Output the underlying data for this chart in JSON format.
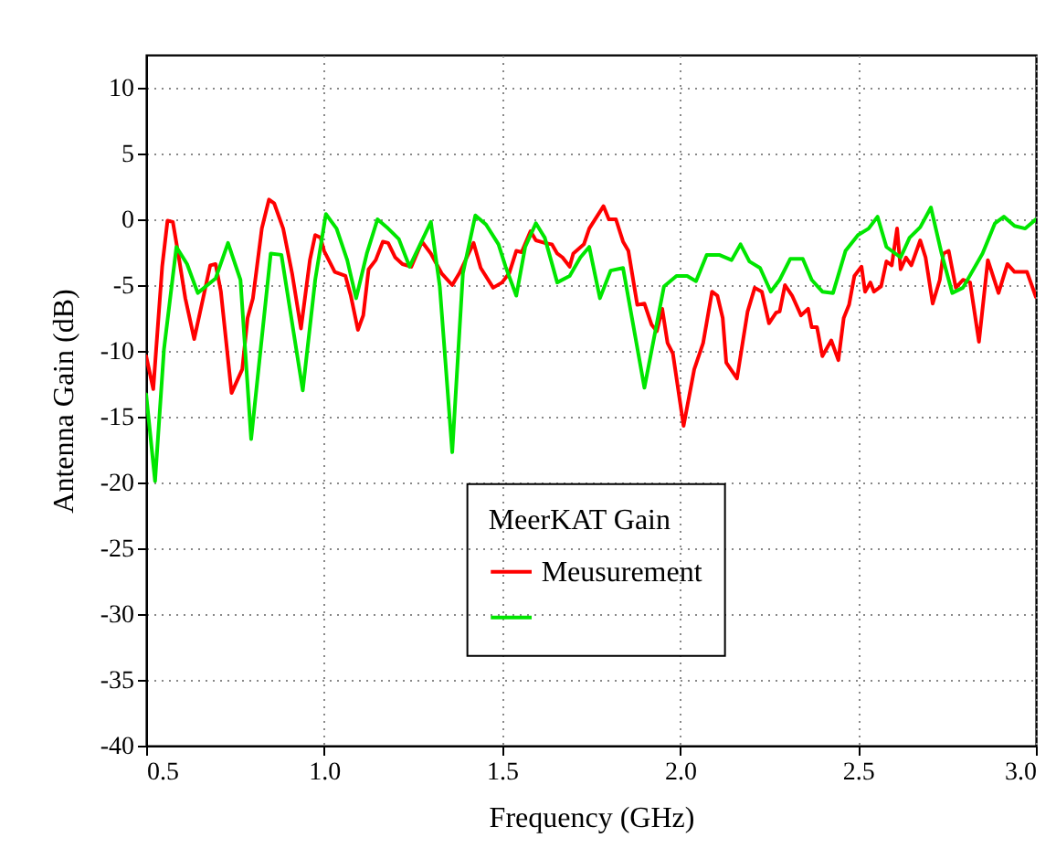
{
  "chart_data": {
    "type": "line",
    "xlabel": "Frequency (GHz)",
    "ylabel": "Antenna Gain (dB)",
    "legend_title": "MeerKAT Gain",
    "legend": "bottom",
    "grid": true,
    "line_style": "solid",
    "xlim": [
      0.5,
      3.0
    ],
    "xticks": [
      {
        "value": 0.5,
        "label": "0.5"
      },
      {
        "value": 1.0,
        "label": "1.0"
      },
      {
        "value": 1.5,
        "label": "1.5"
      },
      {
        "value": 2.0,
        "label": "2.0"
      },
      {
        "value": 2.5,
        "label": "2.5"
      },
      {
        "value": 3.0,
        "label": "3.0"
      }
    ],
    "ylim": [
      -40,
      12.5
    ],
    "yticks": [
      -40,
      -35,
      -30,
      -25,
      -20,
      -15,
      -10,
      -5,
      0,
      5,
      10
    ],
    "series": [
      {
        "name": "Meusurement",
        "color": "#ff0000",
        "x": [
          0.5,
          0.52,
          0.545,
          0.56,
          0.575,
          0.59,
          0.61,
          0.635,
          0.66,
          0.68,
          0.695,
          0.71,
          0.74,
          0.77,
          0.785,
          0.8,
          0.825,
          0.845,
          0.86,
          0.885,
          0.91,
          0.935,
          0.96,
          0.975,
          0.99,
          1.0,
          1.03,
          1.06,
          1.075,
          1.095,
          1.11,
          1.125,
          1.145,
          1.165,
          1.18,
          1.2,
          1.22,
          1.245,
          1.275,
          1.3,
          1.33,
          1.36,
          1.38,
          1.42,
          1.44,
          1.475,
          1.5,
          1.52,
          1.54,
          1.555,
          1.58,
          1.595,
          1.62,
          1.64,
          1.655,
          1.67,
          1.69,
          1.7,
          1.73,
          1.745,
          1.785,
          1.8,
          1.82,
          1.84,
          1.855,
          1.88,
          1.9,
          1.92,
          1.935,
          1.95,
          1.965,
          1.98,
          2.01,
          2.04,
          2.065,
          2.09,
          2.105,
          2.12,
          2.13,
          2.16,
          2.19,
          2.21,
          2.23,
          2.25,
          2.27,
          2.28,
          2.295,
          2.315,
          2.34,
          2.36,
          2.37,
          2.385,
          2.4,
          2.425,
          2.445,
          2.46,
          2.475,
          2.49,
          2.51,
          2.52,
          2.535,
          2.545,
          2.565,
          2.58,
          2.595,
          2.61,
          2.62,
          2.635,
          2.65,
          2.675,
          2.69,
          2.71,
          2.73,
          2.74,
          2.755,
          2.775,
          2.795,
          2.815,
          2.84,
          2.865,
          2.895,
          2.92,
          2.94,
          2.975,
          3.0
        ],
        "values": [
          -10.4,
          -12.9,
          -3.6,
          -0.1,
          -0.2,
          -2.6,
          -6,
          -9.1,
          -6,
          -3.5,
          -3.4,
          -5.5,
          -13.2,
          -11.4,
          -7.5,
          -6,
          -0.7,
          1.5,
          1.2,
          -0.7,
          -4.1,
          -8.3,
          -3.1,
          -1.2,
          -1.4,
          -2.4,
          -4,
          -4.3,
          -5.8,
          -8.4,
          -7.3,
          -3.8,
          -3.1,
          -1.7,
          -1.8,
          -2.9,
          -3.4,
          -3.6,
          -1.7,
          -2.6,
          -4.1,
          -5,
          -4.1,
          -1.8,
          -3.7,
          -5.2,
          -4.8,
          -4.1,
          -2.4,
          -2.5,
          -0.9,
          -1.6,
          -1.8,
          -1.9,
          -2.6,
          -2.9,
          -3.6,
          -2.6,
          -1.9,
          -0.7,
          1.0,
          0,
          0,
          -1.7,
          -2.4,
          -6.5,
          -6.4,
          -8,
          -8.5,
          -6.8,
          -9.4,
          -10.2,
          -15.7,
          -11.4,
          -9.4,
          -5.5,
          -5.8,
          -7.5,
          -10.9,
          -12.1,
          -7,
          -5.2,
          -5.5,
          -7.9,
          -7.1,
          -7,
          -5,
          -5.8,
          -7.3,
          -6.8,
          -8.2,
          -8.2,
          -10.4,
          -9.2,
          -10.7,
          -7.5,
          -6.5,
          -4.3,
          -3.6,
          -5.5,
          -4.8,
          -5.5,
          -5.1,
          -3.2,
          -3.5,
          -0.7,
          -3.8,
          -2.9,
          -3.5,
          -1.6,
          -2.9,
          -6.4,
          -4.6,
          -2.6,
          -2.4,
          -5.2,
          -4.6,
          -4.8,
          -9.3,
          -3.1,
          -5.6,
          -3.4,
          -4,
          -4,
          -5.9
        ]
      },
      {
        "color": "#00e600",
        "x": [
          0.5,
          0.525,
          0.55,
          0.585,
          0.615,
          0.645,
          0.695,
          0.73,
          0.765,
          0.795,
          0.85,
          0.88,
          0.94,
          0.975,
          1.005,
          1.035,
          1.065,
          1.09,
          1.12,
          1.15,
          1.18,
          1.21,
          1.24,
          1.27,
          1.3,
          1.325,
          1.36,
          1.39,
          1.425,
          1.455,
          1.49,
          1.51,
          1.54,
          1.565,
          1.595,
          1.62,
          1.655,
          1.69,
          1.72,
          1.745,
          1.775,
          1.805,
          1.84,
          1.9,
          1.955,
          1.99,
          2.02,
          2.045,
          2.075,
          2.11,
          2.145,
          2.17,
          2.195,
          2.225,
          2.255,
          2.28,
          2.31,
          2.345,
          2.37,
          2.4,
          2.43,
          2.465,
          2.5,
          2.53,
          2.555,
          2.58,
          2.62,
          2.645,
          2.675,
          2.705,
          2.735,
          2.765,
          2.795,
          2.85,
          2.885,
          2.91,
          2.94,
          2.97,
          3.0
        ],
        "values": [
          -13.3,
          -19.9,
          -9.9,
          -2.1,
          -3.4,
          -5.6,
          -4.5,
          -1.8,
          -4.6,
          -16.7,
          -2.6,
          -2.7,
          -13,
          -4.6,
          0.4,
          -0.7,
          -3.1,
          -6,
          -2.6,
          0,
          -0.7,
          -1.5,
          -3.6,
          -1.9,
          -0.2,
          -5.1,
          -17.7,
          -4.1,
          0.3,
          -0.4,
          -1.9,
          -3.6,
          -5.8,
          -2.1,
          -0.3,
          -1.4,
          -4.8,
          -4.3,
          -2.9,
          -2.1,
          -6,
          -3.9,
          -3.7,
          -12.8,
          -5.1,
          -4.3,
          -4.3,
          -4.7,
          -2.7,
          -2.7,
          -3.1,
          -1.9,
          -3.2,
          -3.7,
          -5.5,
          -4.6,
          -3,
          -3,
          -4.6,
          -5.5,
          -5.6,
          -2.4,
          -1.2,
          -0.7,
          0.2,
          -2.1,
          -2.9,
          -1.4,
          -0.6,
          0.9,
          -2.6,
          -5.6,
          -5.2,
          -2.6,
          -0.3,
          0.2,
          -0.5,
          -0.7,
          0
        ]
      }
    ]
  }
}
